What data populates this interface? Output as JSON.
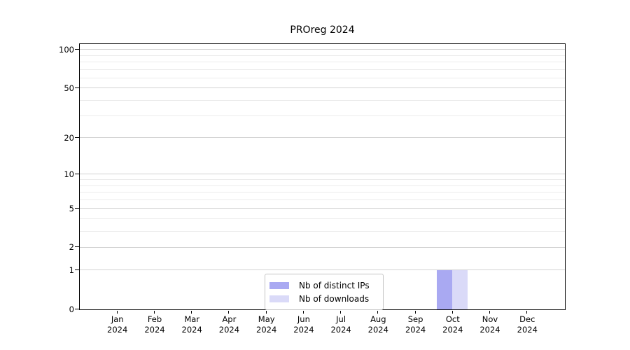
{
  "chart_data": {
    "type": "bar",
    "title": "PROreg 2024",
    "categories": [
      "Jan",
      "Feb",
      "Mar",
      "Apr",
      "May",
      "Jun",
      "Jul",
      "Aug",
      "Sep",
      "Oct",
      "Nov",
      "Dec"
    ],
    "category_year": "2024",
    "series": [
      {
        "name": "Nb of distinct IPs",
        "color": "#a9a9f2",
        "values": [
          0,
          0,
          0,
          0,
          0,
          0,
          0,
          0,
          0,
          1,
          0,
          0
        ]
      },
      {
        "name": "Nb of downloads",
        "color": "#dadaf8",
        "values": [
          0,
          0,
          0,
          0,
          0,
          0,
          0,
          0,
          0,
          1,
          0,
          0
        ]
      }
    ],
    "y_axis": {
      "scale": "log1p",
      "major_ticks": [
        0,
        1,
        2,
        5,
        10,
        20,
        50,
        100
      ],
      "minor_ticks": [
        3,
        4,
        6,
        7,
        8,
        9,
        30,
        40,
        60,
        70,
        80,
        90
      ],
      "ylim": [
        0,
        108
      ]
    },
    "legend": {
      "position": "lower center"
    },
    "grid": "horizontal",
    "colors": {
      "major_grid": "#d2d2d2",
      "minor_grid": "#ebebeb",
      "frame": "#000000",
      "background": "#ffffff"
    }
  }
}
